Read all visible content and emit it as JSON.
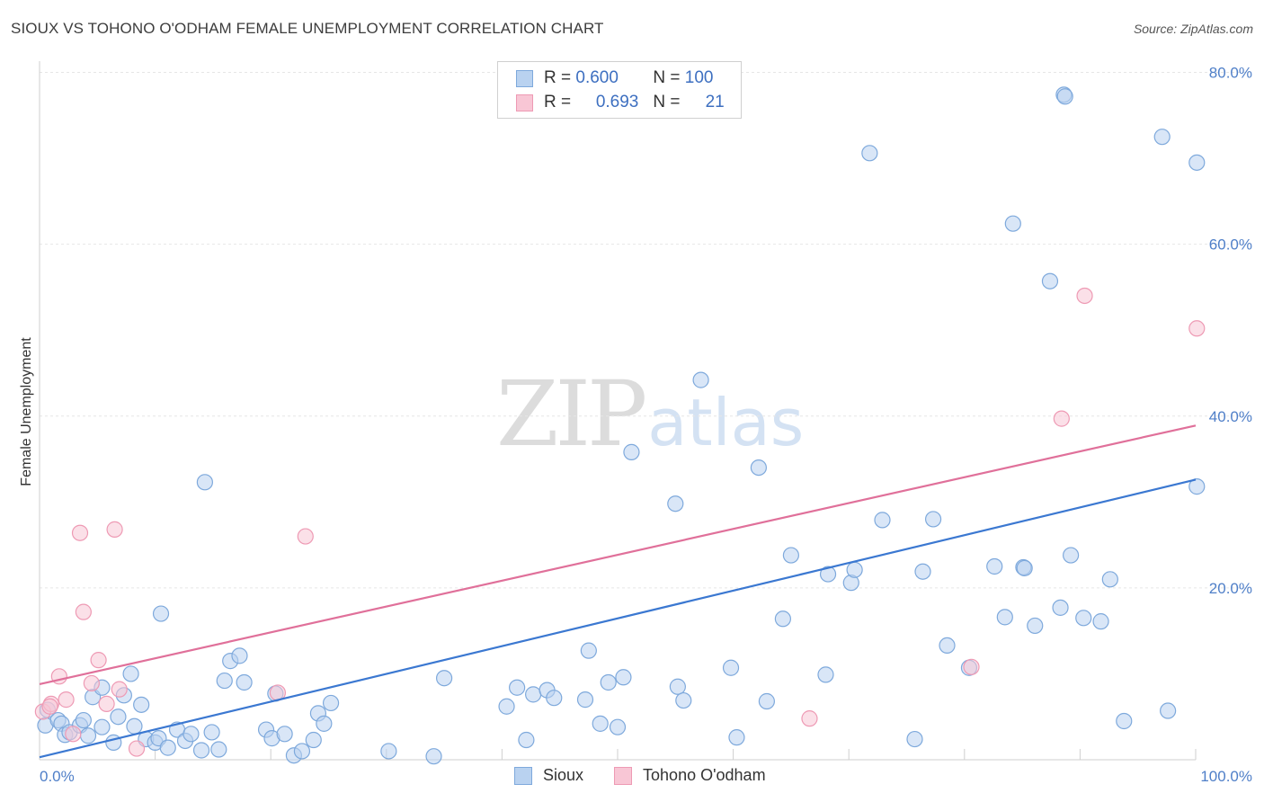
{
  "title": "SIOUX VS TOHONO O'ODHAM FEMALE UNEMPLOYMENT CORRELATION CHART",
  "source": "Source: ZipAtlas.com",
  "watermark": {
    "zip": "ZIP",
    "atlas": "atlas"
  },
  "legend": {
    "r_label": "R = ",
    "n_label": "N = ",
    "rows": [
      {
        "r": "0.600",
        "n": "100"
      },
      {
        "r": "0.693",
        "n": "21"
      }
    ]
  },
  "colors": {
    "sioux_fill": "#b9d2f0",
    "sioux_stroke": "#7ea9dc",
    "sioux_line": "#3b78d1",
    "tohono_fill": "#f8c6d5",
    "tohono_stroke": "#ee9ab4",
    "tohono_line": "#e0709a",
    "tick_text": "#4f7fc8",
    "grid": "#e6e6e6"
  },
  "chart_data": {
    "type": "scatter",
    "title": "SIOUX VS TOHONO O'ODHAM FEMALE UNEMPLOYMENT CORRELATION CHART",
    "xlabel": "",
    "ylabel": "Female Unemployment",
    "xlim": [
      0,
      100
    ],
    "ylim": [
      0,
      80
    ],
    "x_tick_labels": [
      "0.0%",
      "100.0%"
    ],
    "y_ticks": [
      20,
      40,
      60,
      80
    ],
    "y_tick_labels": [
      "20.0%",
      "40.0%",
      "60.0%",
      "80.0%"
    ],
    "legend_position": "top-center",
    "grid": true,
    "series": [
      {
        "name": "Sioux",
        "r": 0.6,
        "n": 100,
        "trend": [
          [
            0,
            0.3
          ],
          [
            100,
            32.6
          ]
        ],
        "points": [
          [
            0.7,
            5.8
          ],
          [
            0.5,
            4.0
          ],
          [
            1.6,
            4.6
          ],
          [
            1.9,
            4.2
          ],
          [
            2.2,
            2.9
          ],
          [
            2.6,
            3.2
          ],
          [
            3.5,
            4.0
          ],
          [
            3.8,
            4.6
          ],
          [
            4.2,
            2.8
          ],
          [
            4.6,
            7.3
          ],
          [
            5.4,
            8.4
          ],
          [
            5.4,
            3.8
          ],
          [
            6.4,
            2.0
          ],
          [
            6.8,
            5.0
          ],
          [
            7.3,
            7.5
          ],
          [
            7.9,
            10.0
          ],
          [
            8.2,
            3.9
          ],
          [
            8.8,
            6.4
          ],
          [
            9.2,
            2.4
          ],
          [
            10.0,
            2.0
          ],
          [
            10.3,
            2.5
          ],
          [
            10.5,
            17.0
          ],
          [
            11.1,
            1.4
          ],
          [
            11.9,
            3.5
          ],
          [
            12.6,
            2.2
          ],
          [
            13.1,
            3.0
          ],
          [
            14.0,
            1.1
          ],
          [
            14.3,
            32.3
          ],
          [
            14.9,
            3.2
          ],
          [
            15.5,
            1.2
          ],
          [
            16.0,
            9.2
          ],
          [
            16.5,
            11.5
          ],
          [
            17.3,
            12.1
          ],
          [
            17.7,
            9.0
          ],
          [
            19.6,
            3.5
          ],
          [
            20.1,
            2.5
          ],
          [
            20.4,
            7.7
          ],
          [
            21.2,
            3.0
          ],
          [
            22.0,
            0.5
          ],
          [
            22.7,
            1.0
          ],
          [
            23.7,
            2.3
          ],
          [
            24.1,
            5.4
          ],
          [
            24.6,
            4.2
          ],
          [
            25.2,
            6.6
          ],
          [
            30.2,
            1.0
          ],
          [
            34.1,
            0.4
          ],
          [
            35.0,
            9.5
          ],
          [
            40.4,
            6.2
          ],
          [
            41.3,
            8.4
          ],
          [
            42.1,
            2.3
          ],
          [
            42.7,
            7.6
          ],
          [
            43.9,
            8.1
          ],
          [
            44.5,
            7.2
          ],
          [
            47.2,
            7.0
          ],
          [
            47.5,
            12.7
          ],
          [
            48.5,
            4.2
          ],
          [
            49.2,
            9.0
          ],
          [
            50.0,
            3.8
          ],
          [
            50.5,
            9.6
          ],
          [
            51.2,
            35.8
          ],
          [
            55.0,
            29.8
          ],
          [
            55.2,
            8.5
          ],
          [
            55.7,
            6.9
          ],
          [
            57.2,
            44.2
          ],
          [
            59.8,
            10.7
          ],
          [
            60.3,
            2.6
          ],
          [
            62.2,
            34.0
          ],
          [
            62.9,
            6.8
          ],
          [
            64.3,
            16.4
          ],
          [
            65.0,
            23.8
          ],
          [
            68.0,
            9.9
          ],
          [
            68.2,
            21.6
          ],
          [
            70.2,
            20.6
          ],
          [
            70.5,
            22.1
          ],
          [
            71.8,
            70.6
          ],
          [
            72.9,
            27.9
          ],
          [
            75.7,
            2.4
          ],
          [
            76.4,
            21.9
          ],
          [
            77.3,
            28.0
          ],
          [
            78.5,
            13.3
          ],
          [
            80.4,
            10.7
          ],
          [
            82.6,
            22.5
          ],
          [
            83.5,
            16.6
          ],
          [
            84.2,
            62.4
          ],
          [
            85.1,
            22.4
          ],
          [
            85.2,
            22.3
          ],
          [
            86.1,
            15.6
          ],
          [
            87.4,
            55.7
          ],
          [
            88.3,
            17.7
          ],
          [
            88.6,
            77.4
          ],
          [
            88.7,
            77.2
          ],
          [
            89.2,
            23.8
          ],
          [
            90.3,
            16.5
          ],
          [
            91.8,
            16.1
          ],
          [
            92.6,
            21.0
          ],
          [
            93.8,
            4.5
          ],
          [
            97.1,
            72.5
          ],
          [
            97.6,
            5.7
          ],
          [
            100.1,
            69.5
          ],
          [
            100.1,
            31.8
          ]
        ]
      },
      {
        "name": "Tohono O'odham",
        "r": 0.693,
        "n": 21,
        "trend": [
          [
            0,
            8.8
          ],
          [
            100,
            38.9
          ]
        ],
        "points": [
          [
            0.3,
            5.6
          ],
          [
            1.0,
            6.5
          ],
          [
            1.7,
            9.7
          ],
          [
            2.3,
            7.0
          ],
          [
            2.9,
            3.0
          ],
          [
            3.5,
            26.4
          ],
          [
            3.8,
            17.2
          ],
          [
            4.5,
            8.9
          ],
          [
            5.1,
            11.6
          ],
          [
            5.8,
            6.5
          ],
          [
            6.5,
            26.8
          ],
          [
            6.9,
            8.2
          ],
          [
            8.4,
            1.3
          ],
          [
            20.6,
            7.8
          ],
          [
            23.0,
            26.0
          ],
          [
            66.6,
            4.8
          ],
          [
            80.6,
            10.8
          ],
          [
            88.4,
            39.7
          ],
          [
            90.4,
            54.0
          ],
          [
            100.1,
            50.2
          ],
          [
            0.9,
            6.2
          ]
        ]
      }
    ]
  },
  "bottom_legend": [
    "Sioux",
    "Tohono O'odham"
  ]
}
